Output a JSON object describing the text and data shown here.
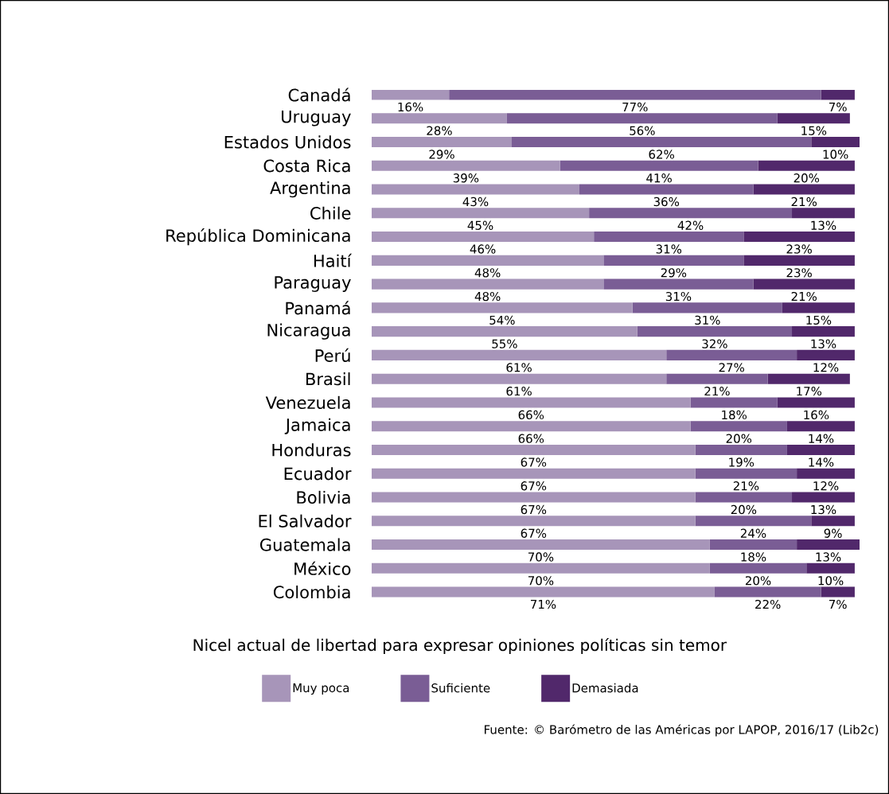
{
  "chart_data": {
    "type": "bar",
    "orientation": "horizontal",
    "stacked": true,
    "categories": [
      "Canadá",
      "Uruguay",
      "Estados Unidos",
      "Costa Rica",
      "Argentina",
      "Chile",
      "República Dominicana",
      "Haití",
      "Paraguay",
      "Panamá",
      "Nicaragua",
      "Perú",
      "Brasil",
      "Venezuela",
      "Jamaica",
      "Honduras",
      "Ecuador",
      "Bolivia",
      "El Salvador",
      "Guatemala",
      "México",
      "Colombia"
    ],
    "series": [
      {
        "name": "Muy poca",
        "color": "#a795b9",
        "values": [
          16,
          28,
          29,
          39,
          43,
          45,
          46,
          48,
          48,
          54,
          55,
          61,
          61,
          66,
          66,
          67,
          67,
          67,
          67,
          70,
          70,
          71
        ],
        "value_labels": [
          "16%",
          "28%",
          "29%",
          "39%",
          "43%",
          "45%",
          "46%",
          "48%",
          "48%",
          "54%",
          "55%",
          "61%",
          "61%",
          "66%",
          "66%",
          "67%",
          "67%",
          "67%",
          "67%",
          "70%",
          "70%",
          "71%"
        ]
      },
      {
        "name": "Suficiente",
        "color": "#7a5d95",
        "values": [
          77,
          56,
          62,
          41,
          36,
          42,
          31,
          29,
          31,
          31,
          32,
          27,
          21,
          18,
          20,
          19,
          21,
          20,
          24,
          18,
          20,
          22
        ],
        "value_labels": [
          "77%",
          "56%",
          "62%",
          "41%",
          "36%",
          "42%",
          "31%",
          "29%",
          "31%",
          "31%",
          "32%",
          "27%",
          "21%",
          "18%",
          "20%",
          "19%",
          "21%",
          "20%",
          "24%",
          "18%",
          "20%",
          "22%"
        ]
      },
      {
        "name": "Demasiada",
        "color": "#51286b",
        "values": [
          7,
          15,
          10,
          20,
          21,
          13,
          23,
          23,
          21,
          15,
          13,
          12,
          17,
          16,
          14,
          14,
          12,
          13,
          9,
          13,
          10,
          7
        ],
        "value_labels": [
          "7%",
          "15%",
          "10%",
          "20%",
          "21%",
          "13%",
          "23%",
          "23%",
          "21%",
          "15%",
          "13%",
          "12%",
          "17%",
          "16%",
          "14%",
          "14%",
          "12%",
          "13%",
          "9%",
          "13%",
          "10%",
          "7%"
        ]
      }
    ],
    "xlabel": "Nicel actual de libertad para expresar opiniones políticas sin temor",
    "legend": "bottom",
    "annotations": [
      "Fuente: © Barómetro de las Américas por LAPOP, 2016/17 (Lib2c)"
    ]
  }
}
